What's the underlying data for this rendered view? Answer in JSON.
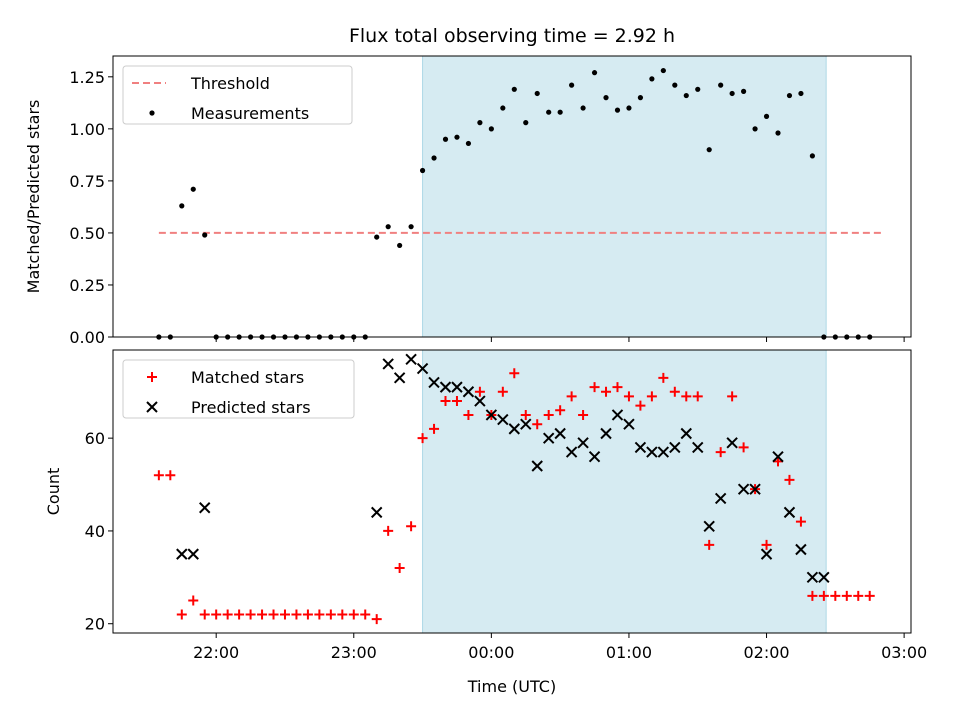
{
  "chart_data": [
    {
      "type": "scatter",
      "title": "Flux total observing time = 2.92 h",
      "ylabel": "Matched/Predicted stars",
      "xlabel": "",
      "ylim": [
        0,
        1.35
      ],
      "yticks": [
        "0.00",
        "0.25",
        "0.50",
        "0.75",
        "1.00",
        "1.25"
      ],
      "xticks": [
        "22:00",
        "23:00",
        "00:00",
        "01:00",
        "02:00",
        "03:00"
      ],
      "x_range_hours": [
        21.25,
        27.05
      ],
      "shaded_interval": [
        "23:30",
        "02:26"
      ],
      "legend_position": "upper-left",
      "legend": [
        "Threshold",
        "Measurements"
      ],
      "threshold": {
        "name": "Threshold",
        "value": 0.5,
        "x_start": "21:35",
        "x_end": "02:50",
        "color": "#f08080"
      },
      "series": [
        {
          "name": "Measurements",
          "color": "#000000",
          "x": [
            "21:35",
            "21:40",
            "21:45",
            "21:50",
            "21:55",
            "22:00",
            "22:05",
            "22:10",
            "22:15",
            "22:20",
            "22:25",
            "22:30",
            "22:35",
            "22:40",
            "22:45",
            "22:50",
            "22:55",
            "23:00",
            "23:05",
            "23:10",
            "23:15",
            "23:20",
            "23:25",
            "23:30",
            "23:35",
            "23:40",
            "23:45",
            "23:50",
            "23:55",
            "00:00",
            "00:05",
            "00:10",
            "00:15",
            "00:20",
            "00:25",
            "00:30",
            "00:35",
            "00:40",
            "00:45",
            "00:50",
            "00:55",
            "01:00",
            "01:05",
            "01:10",
            "01:15",
            "01:20",
            "01:25",
            "01:30",
            "01:35",
            "01:40",
            "01:45",
            "01:50",
            "01:55",
            "02:00",
            "02:05",
            "02:10",
            "02:15",
            "02:20",
            "02:25",
            "02:30",
            "02:35",
            "02:40",
            "02:45"
          ],
          "y": [
            0,
            0,
            0.63,
            0.71,
            0.49,
            0,
            0,
            0,
            0,
            0,
            0,
            0,
            0,
            0,
            0,
            0,
            0,
            0,
            0,
            0.48,
            0.53,
            0.44,
            0.53,
            0.8,
            0.86,
            0.95,
            0.96,
            0.93,
            1.03,
            1.0,
            1.1,
            1.19,
            1.03,
            1.17,
            1.08,
            1.08,
            1.21,
            1.1,
            1.27,
            1.15,
            1.09,
            1.1,
            1.15,
            1.24,
            1.28,
            1.21,
            1.16,
            1.19,
            0.9,
            1.21,
            1.17,
            1.18,
            1.0,
            1.06,
            0.98,
            1.16,
            1.17,
            0.87,
            0,
            0,
            0,
            0,
            0
          ]
        }
      ]
    },
    {
      "type": "scatter",
      "title": "",
      "ylabel": "Count",
      "xlabel": "Time (UTC)",
      "ylim": [
        18,
        79
      ],
      "yticks": [
        "20",
        "40",
        "60"
      ],
      "xticks": [
        "22:00",
        "23:00",
        "00:00",
        "01:00",
        "02:00",
        "03:00"
      ],
      "x_range_hours": [
        21.25,
        27.05
      ],
      "shaded_interval": [
        "23:30",
        "02:26"
      ],
      "legend_position": "upper-left",
      "legend": [
        "Matched stars",
        "Predicted stars"
      ],
      "series": [
        {
          "name": "Matched stars",
          "marker": "plus",
          "color": "#ff0000",
          "x": [
            "21:35",
            "21:40",
            "21:45",
            "21:50",
            "21:55",
            "22:00",
            "22:05",
            "22:10",
            "22:15",
            "22:20",
            "22:25",
            "22:30",
            "22:35",
            "22:40",
            "22:45",
            "22:50",
            "22:55",
            "23:00",
            "23:05",
            "23:10",
            "23:15",
            "23:20",
            "23:25",
            "23:30",
            "23:35",
            "23:40",
            "23:45",
            "23:50",
            "23:55",
            "00:00",
            "00:05",
            "00:10",
            "00:15",
            "00:20",
            "00:25",
            "00:30",
            "00:35",
            "00:40",
            "00:45",
            "00:50",
            "00:55",
            "01:00",
            "01:05",
            "01:10",
            "01:15",
            "01:20",
            "01:25",
            "01:30",
            "01:35",
            "01:40",
            "01:45",
            "01:50",
            "01:55",
            "02:00",
            "02:05",
            "02:10",
            "02:15",
            "02:20",
            "02:25",
            "02:30",
            "02:35",
            "02:40",
            "02:45"
          ],
          "y": [
            52,
            52,
            22,
            25,
            22,
            22,
            22,
            22,
            22,
            22,
            22,
            22,
            22,
            22,
            22,
            22,
            22,
            22,
            22,
            21,
            40,
            32,
            41,
            60,
            62,
            68,
            68,
            65,
            70,
            65,
            70,
            74,
            65,
            63,
            65,
            66,
            69,
            65,
            71,
            70,
            71,
            69,
            67,
            69,
            73,
            70,
            69,
            69,
            37,
            57,
            69,
            58,
            49,
            37,
            55,
            51,
            42,
            26,
            26,
            26,
            26,
            26,
            26
          ]
        },
        {
          "name": "Predicted stars",
          "marker": "x",
          "color": "#000000",
          "x": [
            "21:45",
            "21:50",
            "21:55",
            "23:10",
            "23:15",
            "23:20",
            "23:25",
            "23:30",
            "23:35",
            "23:40",
            "23:45",
            "23:50",
            "23:55",
            "00:00",
            "00:05",
            "00:10",
            "00:15",
            "00:20",
            "00:25",
            "00:30",
            "00:35",
            "00:40",
            "00:45",
            "00:50",
            "00:55",
            "01:00",
            "01:05",
            "01:10",
            "01:15",
            "01:20",
            "01:25",
            "01:30",
            "01:35",
            "01:40",
            "01:45",
            "01:50",
            "01:55",
            "02:00",
            "02:05",
            "02:10",
            "02:15",
            "02:20",
            "02:25"
          ],
          "y": [
            35,
            35,
            45,
            44,
            76,
            73,
            77,
            75,
            72,
            71,
            71,
            70,
            68,
            65,
            64,
            62,
            63,
            54,
            60,
            61,
            57,
            59,
            56,
            61,
            65,
            63,
            58,
            57,
            57,
            58,
            61,
            58,
            41,
            47,
            59,
            49,
            49,
            35,
            56,
            44,
            36,
            30,
            30
          ]
        }
      ]
    }
  ]
}
